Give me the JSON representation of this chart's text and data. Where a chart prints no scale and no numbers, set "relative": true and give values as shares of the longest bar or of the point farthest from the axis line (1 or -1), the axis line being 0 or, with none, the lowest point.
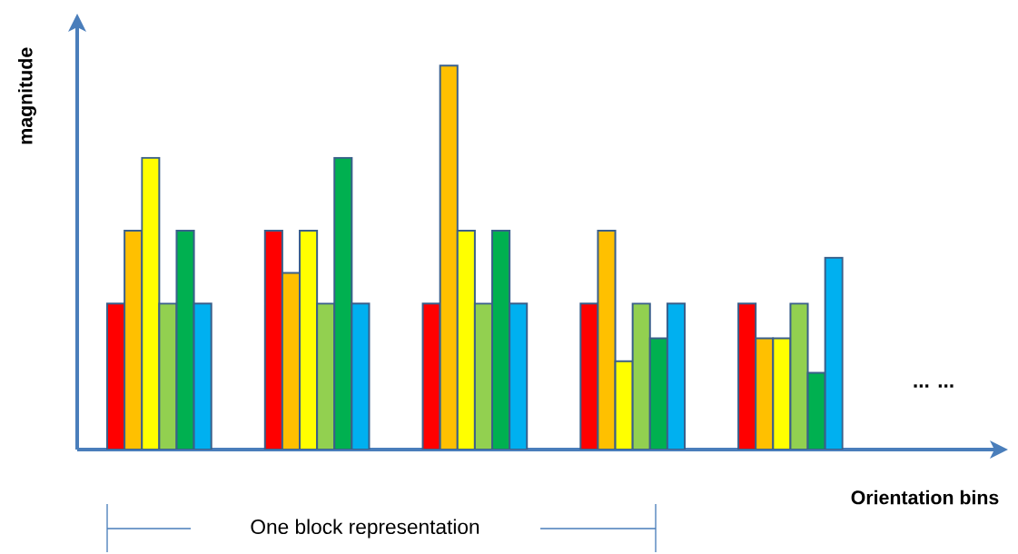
{
  "chart_data": {
    "type": "bar",
    "relative": true,
    "xlabel": "Orientation bins",
    "ylabel": "magnitude",
    "categories": [
      null,
      null,
      null,
      null,
      null
    ],
    "series": [
      {
        "color": "#ff0000",
        "values": [
          0.38,
          0.57,
          0.38,
          0.38,
          0.38
        ]
      },
      {
        "color": "#ffc000",
        "values": [
          0.57,
          0.46,
          1,
          0.57,
          0.29
        ]
      },
      {
        "color": "#ffff00",
        "values": [
          0.76,
          0.57,
          0.57,
          0.23,
          0.29
        ]
      },
      {
        "color": "#92d050",
        "values": [
          0.38,
          0.38,
          0.38,
          0.38,
          0.38
        ]
      },
      {
        "color": "#00b050",
        "values": [
          0.57,
          0.76,
          0.57,
          0.29,
          0.2
        ]
      },
      {
        "color": "#00b0f0",
        "values": [
          0.38,
          0.38,
          0.38,
          0.38,
          0.5
        ]
      }
    ],
    "annotations": [
      "One block representation",
      "... ..."
    ]
  }
}
